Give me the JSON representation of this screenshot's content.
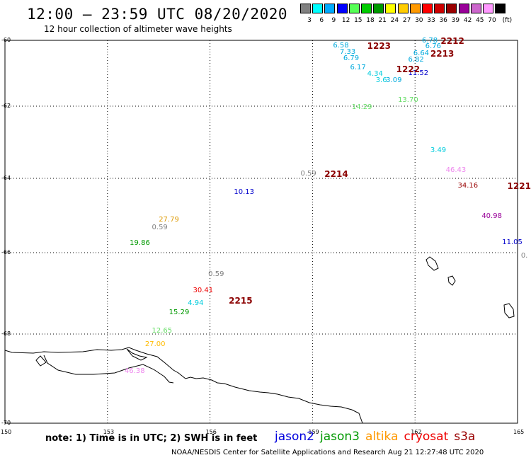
{
  "title": "12:00 – 23:59 UTC 08/20/2020",
  "subtitle": "12 hour collection of altimeter wave heights",
  "scale": {
    "unit_label": "(ft)",
    "bins": [
      {
        "label": "3",
        "color": "#808080"
      },
      {
        "label": "6",
        "color": "#00ffff"
      },
      {
        "label": "9",
        "color": "#00aaff"
      },
      {
        "label": "12",
        "color": "#0000ff"
      },
      {
        "label": "15",
        "color": "#55ff55"
      },
      {
        "label": "18",
        "color": "#00cc00"
      },
      {
        "label": "21",
        "color": "#009900"
      },
      {
        "label": "24",
        "color": "#ffff00"
      },
      {
        "label": "27",
        "color": "#ffcc00"
      },
      {
        "label": "30",
        "color": "#ff9900"
      },
      {
        "label": "33",
        "color": "#ff0000"
      },
      {
        "label": "36",
        "color": "#cc0000"
      },
      {
        "label": "39",
        "color": "#990000"
      },
      {
        "label": "42",
        "color": "#990099"
      },
      {
        "label": "45",
        "color": "#cc66cc"
      },
      {
        "label": "70",
        "color": "#ff99ff"
      },
      {
        "label": "",
        "color": "#000000"
      }
    ]
  },
  "axes": {
    "lon_ticks": [
      "150",
      "153",
      "156",
      "159",
      "162",
      "165"
    ],
    "lat_ticks": [
      "-60",
      "-62",
      "-64",
      "-66",
      "-68",
      "-70"
    ]
  },
  "observations": [
    {
      "text": "6.78",
      "color": "#00aadd",
      "lon": 162.2,
      "lat": -60.05
    },
    {
      "text": "6.58",
      "color": "#00aadd",
      "lon": 159.6,
      "lat": -60.2
    },
    {
      "text": "6.76",
      "color": "#00aadd",
      "lon": 162.3,
      "lat": -60.22
    },
    {
      "text": "7.33",
      "color": "#00aadd",
      "lon": 159.8,
      "lat": -60.38
    },
    {
      "text": "6.64",
      "color": "#00aadd",
      "lon": 161.95,
      "lat": -60.42
    },
    {
      "text": "6.79",
      "color": "#00aadd",
      "lon": 159.9,
      "lat": -60.57
    },
    {
      "text": "6.82",
      "color": "#00aadd",
      "lon": 161.8,
      "lat": -60.62
    },
    {
      "text": "6.17",
      "color": "#00aadd",
      "lon": 160.1,
      "lat": -60.86
    },
    {
      "text": "11.52",
      "color": "#0000cc",
      "lon": 161.8,
      "lat": -61.04
    },
    {
      "text": "4.34",
      "color": "#00ccdd",
      "lon": 160.6,
      "lat": -61.06
    },
    {
      "text": "3.6",
      "color": "#00ccdd",
      "lon": 160.85,
      "lat": -61.25
    },
    {
      "text": "3.09",
      "color": "#00aadd",
      "lon": 161.15,
      "lat": -61.25
    },
    {
      "text": "13.70",
      "color": "#66dd66",
      "lon": 161.5,
      "lat": -61.85
    },
    {
      "text": "14.29",
      "color": "#66dd66",
      "lon": 160.15,
      "lat": -62.05
    },
    {
      "text": "3.49",
      "color": "#00ccdd",
      "lon": 162.45,
      "lat": -63.25
    },
    {
      "text": "46.43",
      "color": "#ee88ee",
      "lon": 162.9,
      "lat": -63.8
    },
    {
      "text": "0.59",
      "color": "#808080",
      "lon": 158.65,
      "lat": -63.9
    },
    {
      "text": "34.16",
      "color": "#990000",
      "lon": 163.25,
      "lat": -64.22
    },
    {
      "text": "10.13",
      "color": "#0000cc",
      "lon": 156.7,
      "lat": -64.4
    },
    {
      "text": "40.98",
      "color": "#990099",
      "lon": 163.95,
      "lat": -65.05
    },
    {
      "text": "27.79",
      "color": "#dd9900",
      "lon": 154.5,
      "lat": -65.15
    },
    {
      "text": "0.59",
      "color": "#808080",
      "lon": 154.3,
      "lat": -65.35
    },
    {
      "text": "19.86",
      "color": "#009900",
      "lon": 153.65,
      "lat": -65.77
    },
    {
      "text": "11.05",
      "color": "#0000cc",
      "lon": 164.55,
      "lat": -65.75
    },
    {
      "text": "0.",
      "color": "#808080",
      "lon": 165.1,
      "lat": -66.1
    },
    {
      "text": "0.59",
      "color": "#808080",
      "lon": 155.95,
      "lat": -66.55
    },
    {
      "text": "30.41",
      "color": "#ee0000",
      "lon": 155.5,
      "lat": -66.95
    },
    {
      "text": "4.94",
      "color": "#00ccdd",
      "lon": 155.35,
      "lat": -67.27
    },
    {
      "text": "15.29",
      "color": "#009900",
      "lon": 154.8,
      "lat": -67.5
    },
    {
      "text": "12.65",
      "color": "#66dd66",
      "lon": 154.3,
      "lat": -67.95
    },
    {
      "text": "27.00",
      "color": "#ffbb00",
      "lon": 154.1,
      "lat": -68.25
    },
    {
      "text": "46.38",
      "color": "#ee88ee",
      "lon": 153.5,
      "lat": -68.85
    }
  ],
  "pass_ids": [
    {
      "text": "2212",
      "lon": 162.75,
      "lat": -60.05
    },
    {
      "text": "1223",
      "lon": 160.6,
      "lat": -60.2
    },
    {
      "text": "2213",
      "lon": 162.45,
      "lat": -60.42
    },
    {
      "text": "1222",
      "lon": 161.45,
      "lat": -60.9
    },
    {
      "text": "2214",
      "lon": 159.35,
      "lat": -63.9
    },
    {
      "text": "1221",
      "lon": 164.7,
      "lat": -64.22
    },
    {
      "text": "2215",
      "lon": 156.55,
      "lat": -67.2
    }
  ],
  "note": "note:  1) Time is in UTC;  2) SWH is in feet",
  "legend": [
    {
      "label": "jason2",
      "color": "#0000dd"
    },
    {
      "label": "jason3",
      "color": "#009900"
    },
    {
      "label": "altika",
      "color": "#ff9900"
    },
    {
      "label": "cryosat",
      "color": "#ee0000"
    },
    {
      "label": "s3a",
      "color": "#990000"
    }
  ],
  "credit": "NOAA/NESDIS Center for Satellite Applications and Research     Aug 21 12:27:48 UTC 2020"
}
